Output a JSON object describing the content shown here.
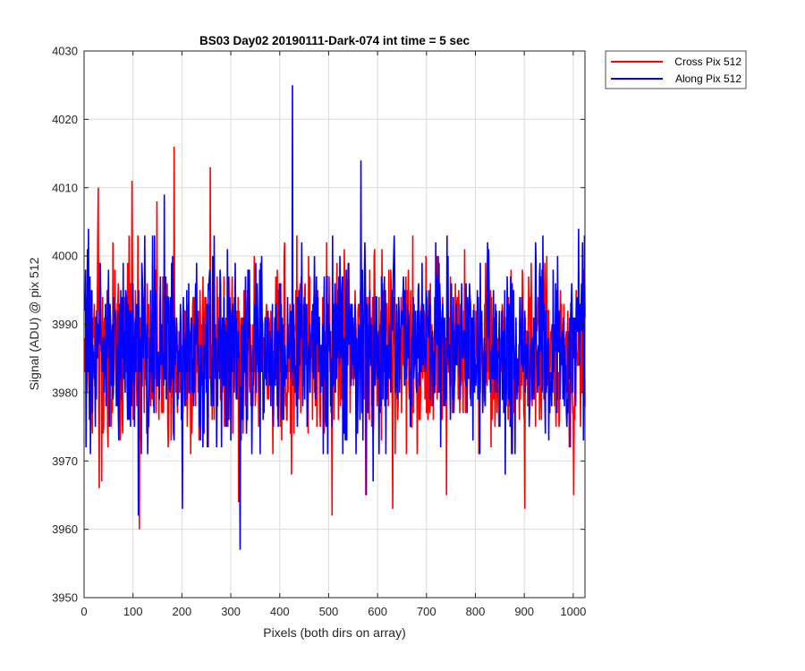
{
  "chart_data": {
    "type": "line",
    "title": "BS03 Day02 20190111-Dark-074 int time = 5 sec",
    "xlabel": "Pixels (both dirs on array)",
    "ylabel": "Signal (ADU) @ pix 512",
    "xlim": [
      0,
      1024
    ],
    "ylim": [
      3950,
      4030
    ],
    "xticks": [
      0,
      100,
      200,
      300,
      400,
      500,
      600,
      700,
      800,
      900,
      1000
    ],
    "yticks": [
      3950,
      3960,
      3970,
      3980,
      3990,
      4000,
      4010,
      4020,
      4030
    ],
    "grid": true,
    "legend_position": "outside-top-right",
    "series": [
      {
        "name": "Cross Pix 512",
        "color": "#ff0000",
        "mean": 3986.5,
        "typical_range": [
          3979,
          3994
        ],
        "extremes": [
          {
            "x": 28,
            "y": 4010
          },
          {
            "x": 35,
            "y": 3967
          },
          {
            "x": 30,
            "y": 3966
          },
          {
            "x": 97,
            "y": 4011
          },
          {
            "x": 112,
            "y": 3960
          },
          {
            "x": 148,
            "y": 4008
          },
          {
            "x": 183,
            "y": 4016
          },
          {
            "x": 257,
            "y": 4013
          },
          {
            "x": 315,
            "y": 3964
          },
          {
            "x": 423,
            "y": 3968
          },
          {
            "x": 506,
            "y": 3962
          },
          {
            "x": 575,
            "y": 3965
          },
          {
            "x": 630,
            "y": 3963
          },
          {
            "x": 740,
            "y": 3965
          },
          {
            "x": 900,
            "y": 3963
          },
          {
            "x": 1000,
            "y": 3965
          }
        ]
      },
      {
        "name": "Along Pix 512",
        "color": "#0000ff",
        "mean": 3986.5,
        "typical_range": [
          3979,
          3994
        ],
        "extremes": [
          {
            "x": 8,
            "y": 4004
          },
          {
            "x": 110,
            "y": 3962
          },
          {
            "x": 163,
            "y": 4009
          },
          {
            "x": 200,
            "y": 3963
          },
          {
            "x": 318,
            "y": 3957
          },
          {
            "x": 425,
            "y": 4025
          },
          {
            "x": 565,
            "y": 4014
          },
          {
            "x": 576,
            "y": 3965
          },
          {
            "x": 590,
            "y": 3967
          },
          {
            "x": 860,
            "y": 3968
          },
          {
            "x": 1010,
            "y": 4004
          }
        ]
      }
    ]
  }
}
